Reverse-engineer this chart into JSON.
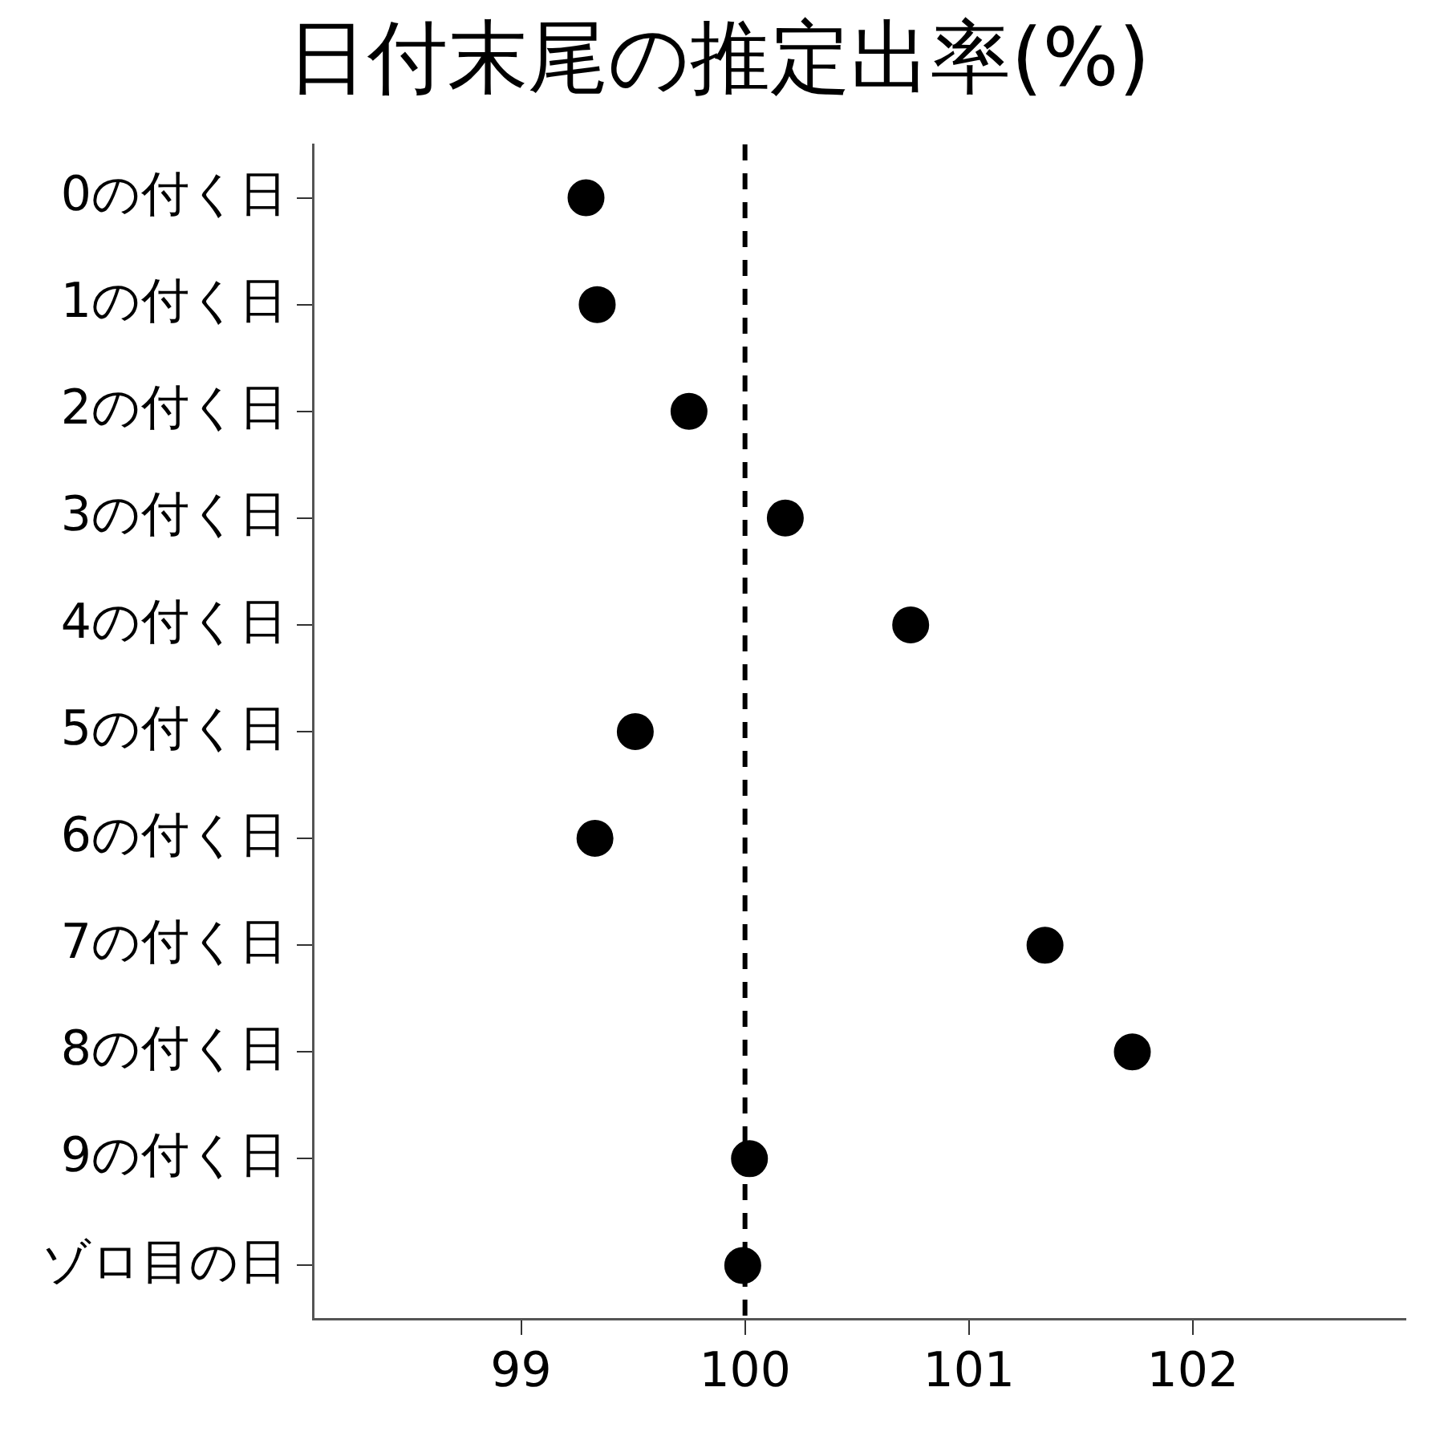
{
  "chart_data": {
    "type": "scatter",
    "orientation": "horizontal",
    "title": "日付末尾の推定出率(%)",
    "categories": [
      "0の付く日",
      "1の付く日",
      "2の付く日",
      "3の付く日",
      "4の付く日",
      "5の付く日",
      "6の付く日",
      "7の付く日",
      "8の付く日",
      "9の付く日",
      "ゾロ目の日"
    ],
    "values": [
      99.29,
      99.34,
      99.75,
      100.18,
      100.74,
      99.51,
      99.33,
      101.34,
      101.73,
      100.02,
      99.99
    ],
    "color": "#000000",
    "marker": "circle",
    "xlim": [
      98.07,
      102.95
    ],
    "xticks": [
      99,
      100,
      101,
      102
    ],
    "ref_lines": [
      {
        "axis": "x",
        "value": 100,
        "line_style": "dashed",
        "color": "#000000"
      }
    ],
    "grid": false,
    "legend": false
  }
}
